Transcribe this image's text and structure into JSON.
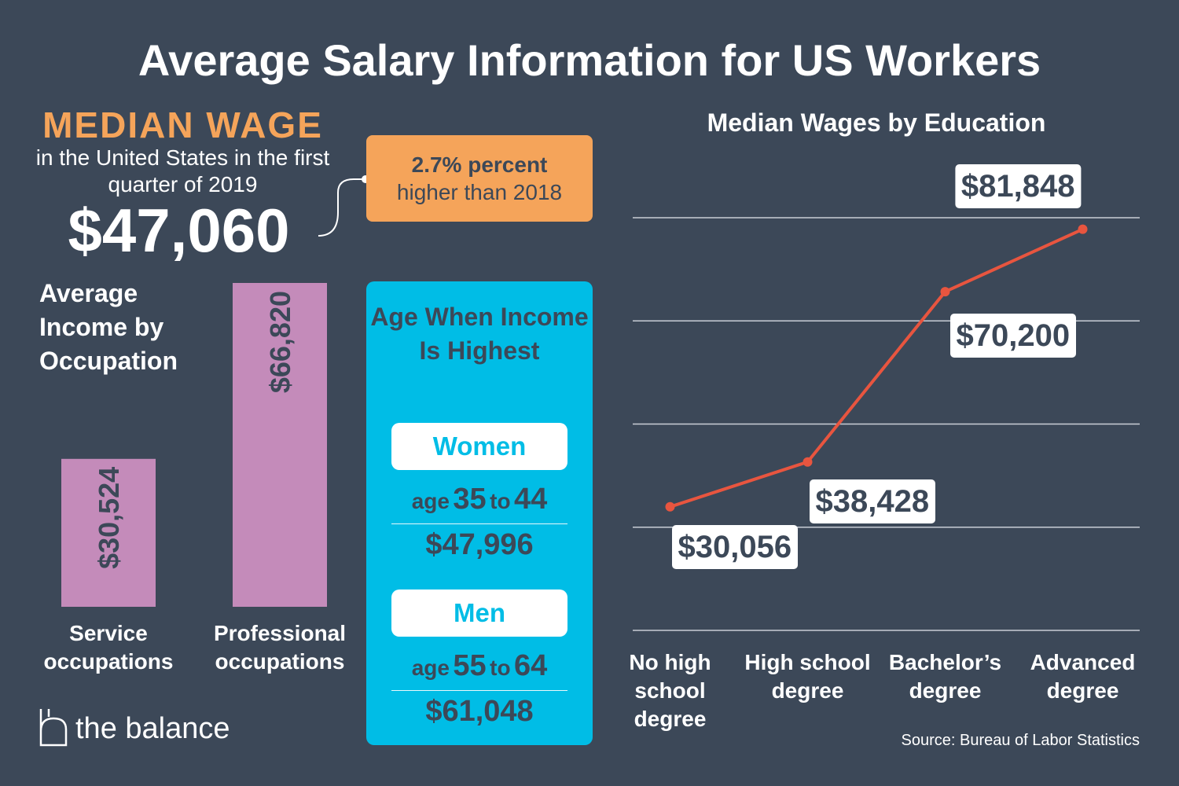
{
  "title": "Average Salary Information for US Workers",
  "median_wage": {
    "heading": "MEDIAN WAGE",
    "description": "in the United States in the first quarter of 2019",
    "amount": "$47,060",
    "callout_bold": "2.7% percent",
    "callout_rest": "higher than 2018"
  },
  "age_highest": {
    "title": "Age When Income Is Highest",
    "groups": [
      {
        "name": "Women",
        "age_word": "age",
        "age_from": "35",
        "to_word": "to",
        "age_to": "44",
        "income": "$47,996"
      },
      {
        "name": "Men",
        "age_word": "age",
        "age_from": "55",
        "to_word": "to",
        "age_to": "64",
        "income": "$61,048"
      }
    ]
  },
  "brand": "the balance",
  "source": "Source: Bureau of Labor Statistics",
  "chart_data": [
    {
      "type": "bar",
      "title": "Average Income by Occupation",
      "categories": [
        "Service occupations",
        "Professional occupations"
      ],
      "values": [
        30524,
        66820
      ],
      "value_labels": [
        "$30,524",
        "$66,820"
      ],
      "color": "#c48bba"
    },
    {
      "type": "line",
      "title": "Median Wages by Education",
      "categories": [
        "No high school degree",
        "High school degree",
        "Bachelor’s degree",
        "Advanced degree"
      ],
      "values": [
        30056,
        38428,
        70200,
        81848
      ],
      "value_labels": [
        "$30,056",
        "$38,428",
        "$70,200",
        "$81,848"
      ],
      "color": "#e8553f",
      "ylim": [
        7000,
        84000
      ],
      "yticks": [
        7000,
        26250,
        45500,
        64750,
        84000
      ],
      "grid": true
    }
  ]
}
